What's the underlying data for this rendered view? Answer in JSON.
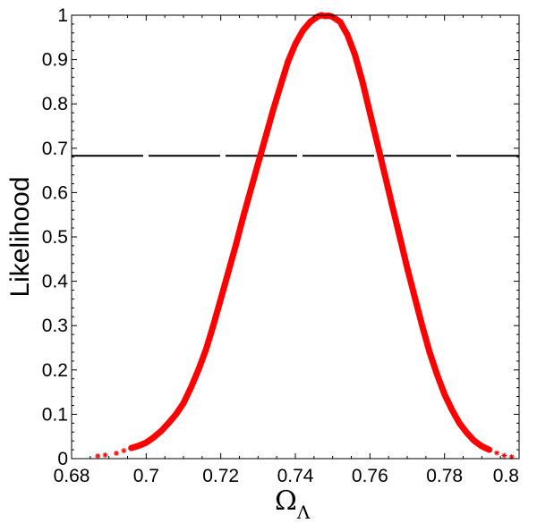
{
  "chart_data": {
    "type": "scatter",
    "title": "",
    "xlabel": "Ω",
    "xlabel_subscript": "Λ",
    "ylabel": "Likelihood",
    "xlim": [
      0.68,
      0.8
    ],
    "ylim": [
      0,
      1
    ],
    "grid": false,
    "x_ticks": [
      {
        "value": 0.68,
        "label": "0.68"
      },
      {
        "value": 0.7,
        "label": "0.7"
      },
      {
        "value": 0.72,
        "label": "0.72"
      },
      {
        "value": 0.74,
        "label": "0.74"
      },
      {
        "value": 0.76,
        "label": "0.76"
      },
      {
        "value": 0.78,
        "label": "0.78"
      },
      {
        "value": 0.8,
        "label": "0.8"
      }
    ],
    "y_ticks": [
      {
        "value": 0,
        "label": "0"
      },
      {
        "value": 0.1,
        "label": "0.1"
      },
      {
        "value": 0.2,
        "label": "0.2"
      },
      {
        "value": 0.3,
        "label": "0.3"
      },
      {
        "value": 0.4,
        "label": "0.4"
      },
      {
        "value": 0.5,
        "label": "0.5"
      },
      {
        "value": 0.6,
        "label": "0.6"
      },
      {
        "value": 0.7,
        "label": "0.7"
      },
      {
        "value": 0.8,
        "label": "0.8"
      },
      {
        "value": 0.9,
        "label": "0.9"
      },
      {
        "value": 1,
        "label": "1"
      }
    ],
    "series": [
      {
        "marker": "*",
        "color": "#ff0000",
        "x": [
          0.687,
          0.689,
          0.692,
          0.694,
          0.696,
          0.698,
          0.7,
          0.702,
          0.704,
          0.706,
          0.708,
          0.71,
          0.712,
          0.714,
          0.716,
          0.718,
          0.72,
          0.722,
          0.724,
          0.726,
          0.728,
          0.73,
          0.732,
          0.734,
          0.736,
          0.738,
          0.74,
          0.742,
          0.744,
          0.746,
          0.747,
          0.748,
          0.749,
          0.75,
          0.752,
          0.754,
          0.756,
          0.758,
          0.76,
          0.762,
          0.764,
          0.766,
          0.768,
          0.77,
          0.772,
          0.774,
          0.776,
          0.778,
          0.78,
          0.782,
          0.784,
          0.786,
          0.788,
          0.79,
          0.792,
          0.794,
          0.796,
          0.798
        ],
        "y": [
          0.006,
          0.008,
          0.012,
          0.018,
          0.024,
          0.029,
          0.036,
          0.048,
          0.062,
          0.08,
          0.1,
          0.125,
          0.16,
          0.2,
          0.245,
          0.3,
          0.36,
          0.42,
          0.48,
          0.545,
          0.605,
          0.665,
          0.725,
          0.785,
          0.84,
          0.895,
          0.935,
          0.965,
          0.985,
          0.997,
          1.0,
          0.998,
          0.999,
          0.996,
          0.985,
          0.955,
          0.91,
          0.85,
          0.78,
          0.71,
          0.64,
          0.57,
          0.5,
          0.43,
          0.365,
          0.3,
          0.24,
          0.19,
          0.145,
          0.11,
          0.08,
          0.058,
          0.04,
          0.028,
          0.02,
          0.013,
          0.007,
          0.004
        ]
      },
      {
        "style": "dashed",
        "color": "#000000",
        "x": [
          0.68,
          0.8
        ],
        "y": [
          0.683,
          0.683
        ]
      }
    ]
  }
}
